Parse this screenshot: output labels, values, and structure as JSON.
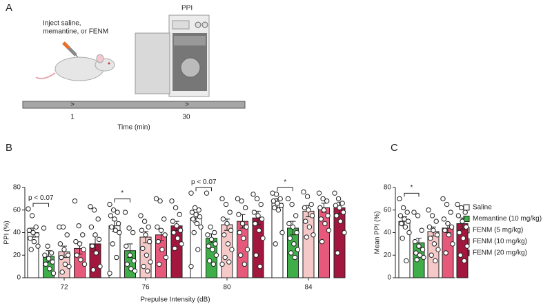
{
  "panels": {
    "a": "A",
    "b": "B",
    "c": "C"
  },
  "schematic": {
    "inject_label": [
      "Inject saline,",
      "memantine, or FENM"
    ],
    "chamber_label": "PPI",
    "timeline": {
      "label": "Time (min)",
      "marks": [
        "1",
        "30"
      ]
    }
  },
  "chart_data": [
    {
      "type": "bar",
      "x_label": "Prepulse Intensity (dB)",
      "y_label": "PPI (%)",
      "categories": [
        "72",
        "76",
        "80",
        "84"
      ],
      "ylim": [
        0,
        80
      ],
      "yticks": [
        0,
        20,
        40,
        60,
        80
      ],
      "series": [
        {
          "name": "Saline",
          "color": "#ffffff",
          "values": [
            40,
            46,
            53,
            66
          ],
          "errors": [
            4,
            5,
            4,
            4
          ],
          "points": [
            [
              61,
              55,
              45,
              42,
              40,
              38,
              35,
              32,
              28,
              25
            ],
            [
              65,
              60,
              58,
              55,
              52,
              48,
              45,
              42,
              40,
              30,
              18,
              4
            ],
            [
              75,
              62,
              60,
              58,
              56,
              54,
              52,
              48,
              45,
              40,
              25,
              10
            ],
            [
              75,
              74,
              70,
              68,
              66,
              64,
              62,
              60,
              40,
              30
            ]
          ]
        },
        {
          "name": "Memantine (10 mg/kg)",
          "color": "#3fae49",
          "values": [
            19,
            24,
            35,
            44
          ],
          "errors": [
            5,
            6,
            4,
            6
          ],
          "points": [
            [
              44,
              28,
              22,
              20,
              17,
              14,
              12,
              8,
              4
            ],
            [
              58,
              44,
              40,
              28,
              20,
              15,
              12,
              8,
              6
            ],
            [
              75,
              45,
              40,
              38,
              34,
              30,
              28,
              25,
              20,
              15,
              12
            ],
            [
              70,
              65,
              55,
              48,
              45,
              40,
              35,
              30,
              25,
              22,
              18
            ]
          ]
        },
        {
          "name": "FENM (5 mg/kg)",
          "color": "#f6c9c9",
          "values": [
            23,
            36,
            47,
            59
          ],
          "errors": [
            5,
            5,
            5,
            5
          ],
          "points": [
            [
              45,
              45,
              38,
              30,
              25,
              20,
              18,
              12,
              10,
              5
            ],
            [
              55,
              50,
              45,
              42,
              38,
              32,
              26,
              20,
              14,
              10,
              6
            ],
            [
              70,
              65,
              58,
              52,
              48,
              42,
              38,
              30,
              25,
              18,
              14,
              12
            ],
            [
              76,
              72,
              65,
              62,
              60,
              55,
              50,
              45,
              38,
              36
            ]
          ]
        },
        {
          "name": "FENM (10 mg/kg)",
          "color": "#e6597a",
          "values": [
            26,
            38,
            50,
            62
          ],
          "errors": [
            5,
            5,
            6,
            4
          ],
          "points": [
            [
              68,
              46,
              38,
              32,
              30,
              25,
              20,
              16,
              12
            ],
            [
              70,
              68,
              52,
              45,
              42,
              38,
              32,
              25,
              18,
              12
            ],
            [
              70,
              68,
              62,
              56,
              48,
              45,
              40,
              35,
              25,
              20,
              12
            ],
            [
              75,
              70,
              68,
              62,
              60,
              55,
              52,
              48,
              42,
              32
            ]
          ]
        },
        {
          "name": "FENM (20 mg/kg)",
          "color": "#a3173f",
          "values": [
            30,
            46,
            53,
            62
          ],
          "errors": [
            7,
            4,
            6,
            5
          ],
          "points": [
            [
              63,
              60,
              52,
              45,
              38,
              34,
              28,
              22,
              10,
              7
            ],
            [
              68,
              62,
              56,
              50,
              46,
              42,
              40,
              35,
              30,
              26
            ],
            [
              74,
              70,
              65,
              58,
              55,
              52,
              48,
              42,
              35,
              20,
              10
            ],
            [
              75,
              70,
              66,
              64,
              62,
              58,
              55,
              50,
              40,
              22
            ]
          ]
        }
      ],
      "annotations": [
        {
          "category": "72",
          "text": "p < 0.07"
        },
        {
          "category": "76",
          "text": "*"
        },
        {
          "category": "80",
          "text": "p < 0.07"
        },
        {
          "category": "84",
          "text": "*"
        }
      ]
    },
    {
      "type": "bar",
      "y_label": "Mean PPI (%)",
      "ylim": [
        0,
        80
      ],
      "yticks": [
        0,
        20,
        40,
        60,
        80
      ],
      "categories": [
        null,
        null,
        null,
        null,
        null
      ],
      "colors": [
        "#ffffff",
        "#3fae49",
        "#f6c9c9",
        "#e6597a",
        "#a3173f"
      ],
      "values": [
        50,
        31,
        41,
        44,
        48
      ],
      "errors": [
        4,
        4,
        4,
        4,
        5
      ],
      "points": [
        [
          70,
          62,
          58,
          55,
          52,
          50,
          48,
          45,
          40,
          35,
          15
        ],
        [
          58,
          55,
          42,
          32,
          28,
          25,
          22,
          20,
          18,
          16
        ],
        [
          60,
          55,
          50,
          45,
          42,
          38,
          35,
          30,
          25,
          20,
          15
        ],
        [
          70,
          65,
          58,
          52,
          48,
          45,
          42,
          38,
          30,
          22
        ],
        [
          65,
          62,
          58,
          55,
          50,
          45,
          40,
          35,
          28,
          20,
          15
        ]
      ],
      "annotations": [
        {
          "text": "*"
        }
      ]
    }
  ]
}
